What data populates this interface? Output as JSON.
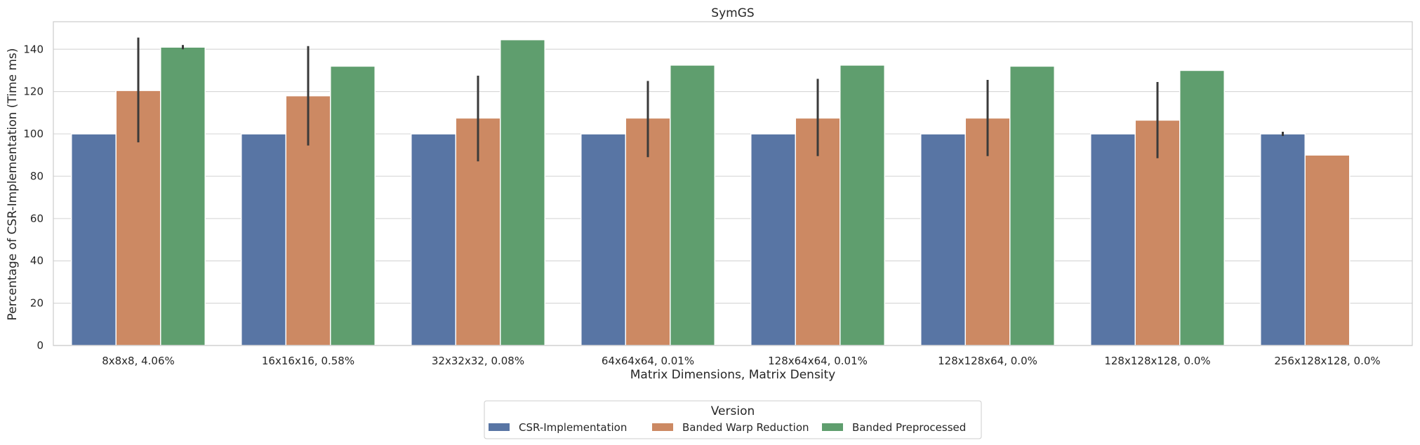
{
  "chart_data": {
    "type": "bar",
    "title": "SymGS",
    "xlabel": "Matrix Dimensions, Matrix Density",
    "ylabel": "Percentage of CSR-Implementation (Time ms)",
    "ylim": [
      0,
      153
    ],
    "yticks": [
      0,
      20,
      40,
      60,
      80,
      100,
      120,
      140
    ],
    "grid": true,
    "legend": {
      "title": "Version",
      "placement": "bottom-center"
    },
    "categories": [
      "8x8x8, 4.06%",
      "16x16x16, 0.58%",
      "32x32x32, 0.08%",
      "64x64x64, 0.01%",
      "128x64x64, 0.01%",
      "128x128x64, 0.0%",
      "128x128x128, 0.0%",
      "256x128x128, 0.0%"
    ],
    "series": [
      {
        "name": "CSR-Implementation",
        "color": "#5875a4",
        "values": [
          100,
          100,
          100,
          100,
          100,
          100,
          100,
          100
        ],
        "error": [
          null,
          null,
          null,
          null,
          null,
          null,
          null,
          [
            99,
            101
          ]
        ]
      },
      {
        "name": "Banded Warp Reduction",
        "color": "#cc8963",
        "values": [
          120.5,
          118,
          107.5,
          107.5,
          107.5,
          107.5,
          106.5,
          90
        ],
        "error": [
          [
            96,
            145.5
          ],
          [
            94.5,
            141.5
          ],
          [
            87,
            127.5
          ],
          [
            89,
            125
          ],
          [
            89.5,
            126
          ],
          [
            89.5,
            125.5
          ],
          [
            88.5,
            124.5
          ],
          null
        ]
      },
      {
        "name": "Banded Preprocessed",
        "color": "#5f9e6e",
        "values": [
          141,
          132,
          144.5,
          132.5,
          132.5,
          132,
          130,
          null
        ],
        "error": [
          [
            140,
            142
          ],
          null,
          null,
          null,
          null,
          null,
          null,
          null
        ]
      }
    ]
  }
}
